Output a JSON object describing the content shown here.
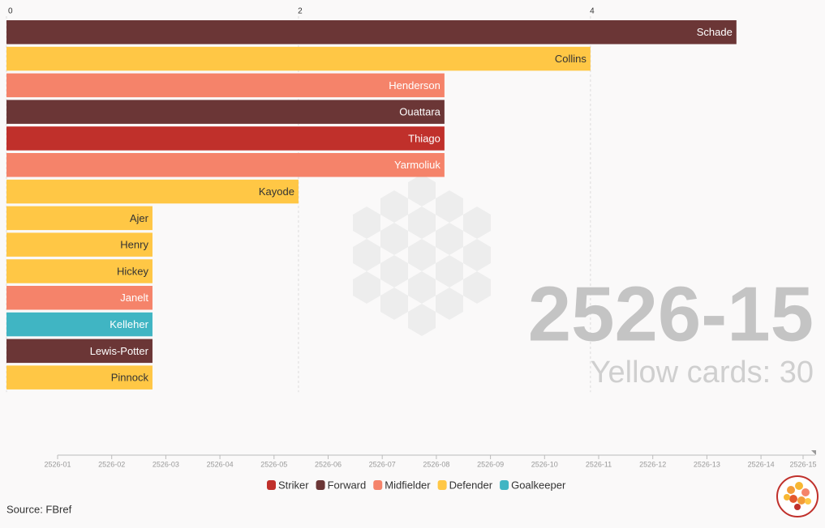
{
  "chart_data": {
    "type": "bar",
    "categories": [
      "Schade",
      "Collins",
      "Henderson",
      "Ouattara",
      "Thiago",
      "Yarmoliuk",
      "Kayode",
      "Ajer",
      "Henry",
      "Hickey",
      "Janelt",
      "Kelleher",
      "Lewis-Potter",
      "Pinnock"
    ],
    "values": [
      5,
      4,
      3,
      3,
      3,
      3,
      2,
      1,
      1,
      1,
      1,
      1,
      1,
      1
    ],
    "positions": [
      "Forward",
      "Defender",
      "Midfielder",
      "Forward",
      "Striker",
      "Midfielder",
      "Defender",
      "Defender",
      "Defender",
      "Defender",
      "Midfielder",
      "Goalkeeper",
      "Forward",
      "Defender"
    ],
    "legend": [
      {
        "name": "Striker",
        "color": "#c0302b"
      },
      {
        "name": "Forward",
        "color": "#6b3636"
      },
      {
        "name": "Midfielder",
        "color": "#f5836a"
      },
      {
        "name": "Defender",
        "color": "#ffc745"
      },
      {
        "name": "Goalkeeper",
        "color": "#40b5c3"
      }
    ],
    "xlim": [
      0,
      5.54
    ],
    "xticks": [
      0,
      2,
      4
    ],
    "grid": true,
    "period": "2526-15",
    "counter": "Yellow cards: 30",
    "timeline": [
      "2526-01",
      "2526-02",
      "2526-03",
      "2526-04",
      "2526-05",
      "2526-06",
      "2526-07",
      "2526-08",
      "2526-09",
      "2526-10",
      "2526-11",
      "2526-12",
      "2526-13",
      "2526-14",
      "2526-15"
    ],
    "source": "Source: FBref"
  }
}
